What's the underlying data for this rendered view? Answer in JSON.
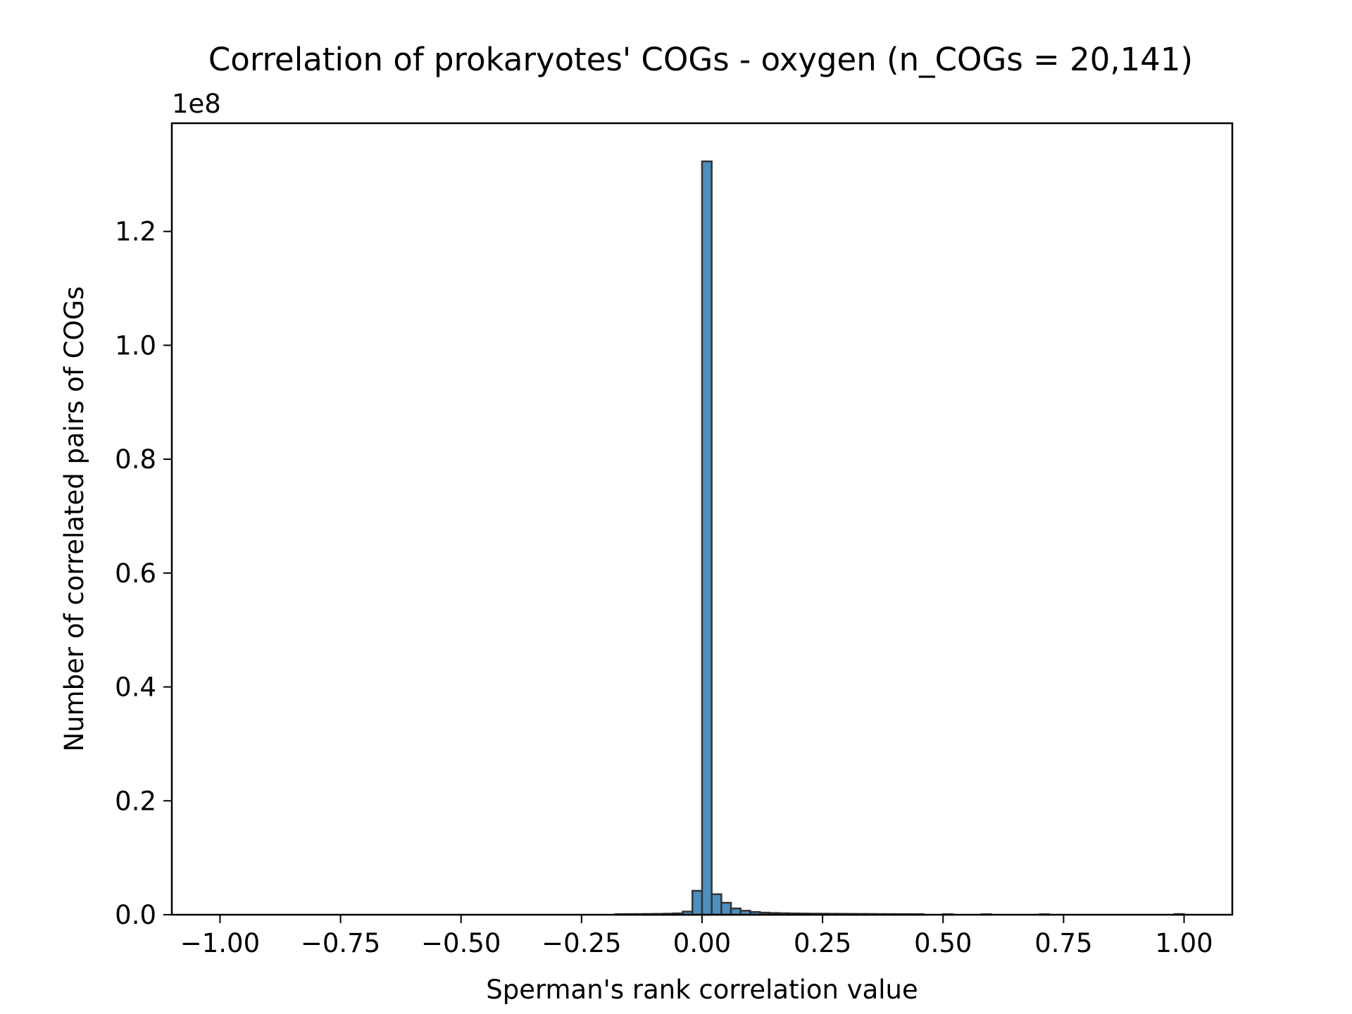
{
  "chart_data": {
    "type": "bar",
    "title": "Correlation of prokaryotes' COGs - oxygen (n_COGs = 20,141)",
    "xlabel": "Sperman's rank correlation value",
    "ylabel": "Number of correlated pairs of COGs",
    "y_offset_label": "1e8",
    "xlim": [
      -1.1,
      1.1
    ],
    "ylim": [
      0,
      139000000.0
    ],
    "x_ticks": [
      -1.0,
      -0.75,
      -0.5,
      -0.25,
      0.0,
      0.25,
      0.5,
      0.75,
      1.0
    ],
    "x_tick_labels": [
      "−1.00",
      "−0.75",
      "−0.50",
      "−0.25",
      "0.00",
      "0.25",
      "0.50",
      "0.75",
      "1.00"
    ],
    "y_ticks": [
      0,
      20000000,
      40000000,
      60000000,
      80000000,
      100000000,
      120000000
    ],
    "y_tick_labels": [
      "0.0",
      "0.2",
      "0.4",
      "0.6",
      "0.8",
      "1.0",
      "1.2"
    ],
    "bin_width": 0.02,
    "bins": [
      {
        "x": -0.18,
        "value": 100000
      },
      {
        "x": -0.16,
        "value": 110000
      },
      {
        "x": -0.14,
        "value": 120000
      },
      {
        "x": -0.12,
        "value": 130000
      },
      {
        "x": -0.1,
        "value": 150000
      },
      {
        "x": -0.08,
        "value": 180000
      },
      {
        "x": -0.06,
        "value": 240000
      },
      {
        "x": -0.04,
        "value": 550000
      },
      {
        "x": -0.02,
        "value": 4200000
      },
      {
        "x": 0.0,
        "value": 132300000
      },
      {
        "x": 0.02,
        "value": 3600000
      },
      {
        "x": 0.04,
        "value": 2100000
      },
      {
        "x": 0.06,
        "value": 1100000
      },
      {
        "x": 0.08,
        "value": 700000
      },
      {
        "x": 0.1,
        "value": 480000
      },
      {
        "x": 0.12,
        "value": 360000
      },
      {
        "x": 0.14,
        "value": 300000
      },
      {
        "x": 0.16,
        "value": 260000
      },
      {
        "x": 0.18,
        "value": 230000
      },
      {
        "x": 0.2,
        "value": 210000
      },
      {
        "x": 0.22,
        "value": 190000
      },
      {
        "x": 0.24,
        "value": 180000
      },
      {
        "x": 0.26,
        "value": 170000
      },
      {
        "x": 0.28,
        "value": 160000
      },
      {
        "x": 0.3,
        "value": 150000
      },
      {
        "x": 0.32,
        "value": 140000
      },
      {
        "x": 0.34,
        "value": 130000
      },
      {
        "x": 0.36,
        "value": 120000
      },
      {
        "x": 0.38,
        "value": 110000
      },
      {
        "x": 0.4,
        "value": 105000
      },
      {
        "x": 0.42,
        "value": 100000
      },
      {
        "x": 0.44,
        "value": 95000
      },
      {
        "x": 0.5,
        "value": 90000
      },
      {
        "x": 0.58,
        "value": 85000
      },
      {
        "x": 0.7,
        "value": 80000
      },
      {
        "x": 0.98,
        "value": 120000
      }
    ],
    "bar_color": "#4c8fc0",
    "bar_edge_color": "#333333",
    "grid": false,
    "legend": "none"
  }
}
